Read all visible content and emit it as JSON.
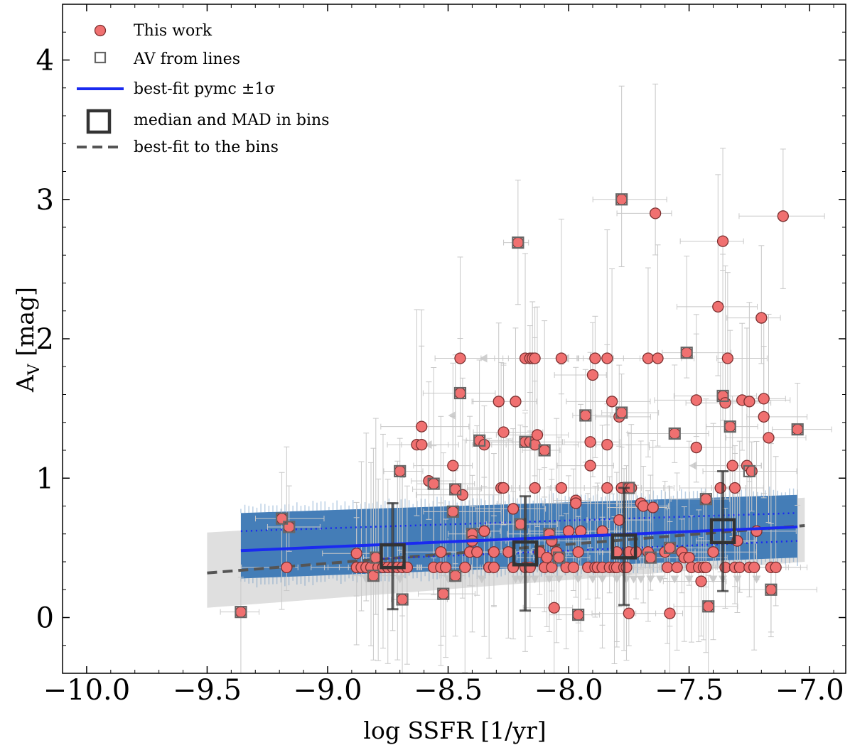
{
  "chart_data": {
    "type": "scatter",
    "xlabel": "log SSFR [1/yr]",
    "ylabel": "A_V [mag]",
    "xlim": [
      -10.1,
      -6.85
    ],
    "ylim": [
      -0.4,
      4.4
    ],
    "xticks": [
      -10.0,
      -9.5,
      -9.0,
      -8.5,
      -8.0,
      -7.5,
      -7.0
    ],
    "xtick_labels": [
      "−10.0",
      "−9.5",
      "−9.0",
      "−8.5",
      "−8.0",
      "−7.5",
      "−7.0"
    ],
    "yticks": [
      0,
      1,
      2,
      3,
      4
    ],
    "ytick_labels": [
      "0",
      "1",
      "2",
      "3",
      "4"
    ],
    "grid": false,
    "legend_position": "top-left",
    "legend": [
      {
        "label": "This work",
        "marker": "circle"
      },
      {
        "label": "AV from lines",
        "marker": "square"
      },
      {
        "label": "best-fit pymc ±1σ",
        "marker": "solid-line"
      },
      {
        "label": "median and MAD in bins",
        "marker": "big-square"
      },
      {
        "label": "best-fit to the bins",
        "marker": "dashed-line"
      }
    ],
    "colors": {
      "points": "#f07070",
      "point_edge": "#7a3030",
      "errorbar": "#c8c8c8",
      "fit_line": "#1a2af0",
      "fit_band": "#3f7ab6",
      "bins": "#333333",
      "bin_band": "#d9d9d9",
      "limit_arrow": "#c8c8c8"
    },
    "series": [
      {
        "name": "This work",
        "points": [
          [
            -9.36,
            0.04
          ],
          [
            -9.19,
            0.71
          ],
          [
            -9.16,
            0.65
          ],
          [
            -9.17,
            0.36
          ],
          [
            -8.88,
            0.46
          ],
          [
            -8.88,
            0.36
          ],
          [
            -8.86,
            0.36
          ],
          [
            -8.84,
            0.36
          ],
          [
            -8.82,
            0.36
          ],
          [
            -8.8,
            0.43
          ],
          [
            -8.81,
            0.3
          ],
          [
            -8.79,
            0.36
          ],
          [
            -8.77,
            0.36
          ],
          [
            -8.75,
            0.36
          ],
          [
            -8.73,
            0.36
          ],
          [
            -8.71,
            0.36
          ],
          [
            -8.69,
            0.36
          ],
          [
            -8.67,
            0.36
          ],
          [
            -8.7,
            1.05
          ],
          [
            -8.69,
            0.13
          ],
          [
            -8.63,
            1.24
          ],
          [
            -8.61,
            1.24
          ],
          [
            -8.61,
            1.37
          ],
          [
            -8.58,
            0.98
          ],
          [
            -8.56,
            0.96
          ],
          [
            -8.56,
            0.36
          ],
          [
            -8.53,
            0.36
          ],
          [
            -8.51,
            0.36
          ],
          [
            -8.53,
            0.47
          ],
          [
            -8.52,
            0.17
          ],
          [
            -8.48,
            1.09
          ],
          [
            -8.47,
            0.92
          ],
          [
            -8.48,
            0.76
          ],
          [
            -8.47,
            0.3
          ],
          [
            -8.45,
            1.86
          ],
          [
            -8.45,
            1.61
          ],
          [
            -8.44,
            0.88
          ],
          [
            -8.43,
            0.36
          ],
          [
            -8.41,
            0.47
          ],
          [
            -8.4,
            0.6
          ],
          [
            -8.4,
            0.55
          ],
          [
            -8.38,
            0.47
          ],
          [
            -8.37,
            1.27
          ],
          [
            -8.35,
            1.24
          ],
          [
            -8.35,
            0.62
          ],
          [
            -8.33,
            0.36
          ],
          [
            -8.31,
            0.36
          ],
          [
            -8.31,
            0.47
          ],
          [
            -8.29,
            1.55
          ],
          [
            -8.28,
            0.93
          ],
          [
            -8.27,
            0.93
          ],
          [
            -8.27,
            1.33
          ],
          [
            -8.25,
            0.47
          ],
          [
            -8.23,
            0.36
          ],
          [
            -8.22,
            1.55
          ],
          [
            -8.23,
            0.78
          ],
          [
            -8.21,
            2.69
          ],
          [
            -8.2,
            0.67
          ],
          [
            -8.18,
            1.86
          ],
          [
            -8.16,
            1.86
          ],
          [
            -8.15,
            1.86
          ],
          [
            -8.14,
            1.86
          ],
          [
            -8.18,
            1.26
          ],
          [
            -8.16,
            1.26
          ],
          [
            -8.14,
            1.24
          ],
          [
            -8.13,
            1.31
          ],
          [
            -8.14,
            0.93
          ],
          [
            -8.18,
            0.36
          ],
          [
            -8.16,
            0.36
          ],
          [
            -8.12,
            0.47
          ],
          [
            -8.1,
            0.36
          ],
          [
            -8.1,
            1.2
          ],
          [
            -8.09,
            0.43
          ],
          [
            -8.08,
            0.6
          ],
          [
            -8.07,
            0.55
          ],
          [
            -8.07,
            0.36
          ],
          [
            -8.06,
            0.07
          ],
          [
            -8.05,
            0.47
          ],
          [
            -8.04,
            0.43
          ],
          [
            -8.03,
            1.86
          ],
          [
            -8.03,
            0.93
          ],
          [
            -8.01,
            0.36
          ],
          [
            -8.0,
            0.62
          ],
          [
            -7.98,
            0.36
          ],
          [
            -7.97,
            0.84
          ],
          [
            -7.97,
            0.82
          ],
          [
            -7.96,
            0.47
          ],
          [
            -7.96,
            0.02
          ],
          [
            -7.95,
            0.62
          ],
          [
            -7.93,
            1.45
          ],
          [
            -7.92,
            0.36
          ],
          [
            -7.91,
            1.26
          ],
          [
            -7.91,
            1.09
          ],
          [
            -7.9,
            1.74
          ],
          [
            -7.89,
            1.86
          ],
          [
            -7.89,
            0.36
          ],
          [
            -7.88,
            0.36
          ],
          [
            -7.86,
            0.36
          ],
          [
            -7.86,
            0.62
          ],
          [
            -7.84,
            1.86
          ],
          [
            -7.84,
            1.24
          ],
          [
            -7.84,
            0.93
          ],
          [
            -7.83,
            0.36
          ],
          [
            -7.82,
            1.55
          ],
          [
            -7.81,
            0.36
          ],
          [
            -7.8,
            0.47
          ],
          [
            -7.8,
            0.36
          ],
          [
            -7.79,
            0.7
          ],
          [
            -7.79,
            1.44
          ],
          [
            -7.78,
            1.47
          ],
          [
            -7.78,
            3.0
          ],
          [
            -7.78,
            0.93
          ],
          [
            -7.77,
            0.36
          ],
          [
            -7.76,
            0.36
          ],
          [
            -7.75,
            0.93
          ],
          [
            -7.75,
            0.47
          ],
          [
            -7.75,
            0.03
          ],
          [
            -7.74,
            0.93
          ],
          [
            -7.72,
            0.47
          ],
          [
            -7.7,
            0.82
          ],
          [
            -7.69,
            0.8
          ],
          [
            -7.67,
            1.86
          ],
          [
            -7.67,
            0.47
          ],
          [
            -7.66,
            0.43
          ],
          [
            -7.65,
            0.79
          ],
          [
            -7.64,
            2.9
          ],
          [
            -7.63,
            1.86
          ],
          [
            -7.6,
            0.47
          ],
          [
            -7.59,
            0.36
          ],
          [
            -7.58,
            0.5
          ],
          [
            -7.58,
            0.03
          ],
          [
            -7.56,
            1.32
          ],
          [
            -7.55,
            0.36
          ],
          [
            -7.53,
            0.47
          ],
          [
            -7.52,
            0.43
          ],
          [
            -7.51,
            1.9
          ],
          [
            -7.5,
            0.43
          ],
          [
            -7.49,
            0.36
          ],
          [
            -7.47,
            1.56
          ],
          [
            -7.47,
            1.22
          ],
          [
            -7.46,
            0.36
          ],
          [
            -7.45,
            0.26
          ],
          [
            -7.44,
            0.36
          ],
          [
            -7.43,
            0.85
          ],
          [
            -7.43,
            0.36
          ],
          [
            -7.42,
            0.08
          ],
          [
            -7.4,
            0.47
          ],
          [
            -7.38,
            2.23
          ],
          [
            -7.37,
            0.93
          ],
          [
            -7.36,
            2.7
          ],
          [
            -7.36,
            1.59
          ],
          [
            -7.35,
            1.54
          ],
          [
            -7.35,
            0.36
          ],
          [
            -7.34,
            1.86
          ],
          [
            -7.33,
            1.37
          ],
          [
            -7.32,
            1.09
          ],
          [
            -7.31,
            0.93
          ],
          [
            -7.31,
            0.36
          ],
          [
            -7.3,
            0.55
          ],
          [
            -7.29,
            0.36
          ],
          [
            -7.28,
            1.56
          ],
          [
            -7.26,
            1.09
          ],
          [
            -7.25,
            1.55
          ],
          [
            -7.25,
            0.36
          ],
          [
            -7.24,
            1.05
          ],
          [
            -7.23,
            0.36
          ],
          [
            -7.22,
            0.62
          ],
          [
            -7.2,
            2.15
          ],
          [
            -7.19,
            1.44
          ],
          [
            -7.19,
            1.57
          ],
          [
            -7.17,
            1.29
          ],
          [
            -7.16,
            0.2
          ],
          [
            -7.16,
            0.36
          ],
          [
            -7.14,
            0.36
          ],
          [
            -7.11,
            2.88
          ],
          [
            -7.05,
            1.35
          ]
        ]
      },
      {
        "name": "AV from lines",
        "points": [
          [
            -9.36,
            0.04
          ],
          [
            -9.19,
            0.71
          ],
          [
            -9.16,
            0.65
          ],
          [
            -8.81,
            0.3
          ],
          [
            -8.8,
            0.43
          ],
          [
            -8.7,
            1.05
          ],
          [
            -8.69,
            0.13
          ],
          [
            -8.56,
            0.96
          ],
          [
            -8.52,
            0.17
          ],
          [
            -8.48,
            0.76
          ],
          [
            -8.47,
            0.92
          ],
          [
            -8.47,
            0.3
          ],
          [
            -8.45,
            1.61
          ],
          [
            -8.4,
            0.6
          ],
          [
            -8.37,
            1.27
          ],
          [
            -8.21,
            2.69
          ],
          [
            -8.2,
            0.67
          ],
          [
            -8.18,
            1.26
          ],
          [
            -8.1,
            1.2
          ],
          [
            -8.08,
            0.6
          ],
          [
            -8.04,
            0.43
          ],
          [
            -7.96,
            0.02
          ],
          [
            -7.93,
            1.45
          ],
          [
            -7.78,
            1.47
          ],
          [
            -7.78,
            3.0
          ],
          [
            -7.75,
            0.93
          ],
          [
            -7.66,
            0.43
          ],
          [
            -7.58,
            0.5
          ],
          [
            -7.56,
            1.32
          ],
          [
            -7.51,
            1.9
          ],
          [
            -7.43,
            0.85
          ],
          [
            -7.42,
            0.08
          ],
          [
            -7.36,
            1.59
          ],
          [
            -7.33,
            1.37
          ],
          [
            -7.25,
            1.05
          ],
          [
            -7.16,
            0.2
          ],
          [
            -7.05,
            1.35
          ]
        ]
      },
      {
        "name": "upper limits",
        "points": [
          [
            -8.84,
            0.27
          ],
          [
            -8.7,
            0.27
          ],
          [
            -8.5,
            0.27
          ],
          [
            -8.36,
            0.27
          ],
          [
            -8.22,
            0.27
          ],
          [
            -8.2,
            0.27
          ],
          [
            -8.17,
            0.27
          ],
          [
            -8.14,
            0.27
          ],
          [
            -8.08,
            0.27
          ],
          [
            -8.04,
            0.27
          ],
          [
            -7.96,
            0.27
          ],
          [
            -7.9,
            0.27
          ],
          [
            -7.86,
            0.27
          ],
          [
            -7.8,
            0.27
          ],
          [
            -7.76,
            0.27
          ],
          [
            -7.73,
            0.27
          ],
          [
            -7.7,
            0.27
          ],
          [
            -7.66,
            0.27
          ],
          [
            -7.62,
            0.27
          ],
          [
            -7.56,
            0.27
          ],
          [
            -7.5,
            0.27
          ],
          [
            -7.4,
            0.27
          ],
          [
            -7.36,
            0.27
          ],
          [
            -7.3,
            0.27
          ],
          [
            -7.22,
            0.27
          ]
        ]
      }
    ],
    "bins": {
      "name": "median and MAD in bins",
      "points": [
        {
          "x": -8.73,
          "y": 0.44,
          "err": 0.38
        },
        {
          "x": -8.18,
          "y": 0.46,
          "err": 0.41
        },
        {
          "x": -7.77,
          "y": 0.51,
          "err": 0.42
        },
        {
          "x": -7.36,
          "y": 0.62,
          "err": 0.43
        }
      ]
    },
    "fit_pymc": {
      "name": "best-fit pymc ±1σ",
      "x_range": [
        -9.36,
        -7.05
      ],
      "y_at_ends": [
        0.48,
        0.65
      ],
      "sigma_lower": [
        0.0,
        0.55
      ],
      "sigma_upper": [
        0.62,
        0.75
      ],
      "band_lower": [
        0.28,
        0.43
      ],
      "band_upper": [
        0.75,
        0.88
      ]
    },
    "fit_bins": {
      "name": "best-fit to the bins",
      "x_range": [
        -9.5,
        -7.02
      ],
      "y_at_ends": [
        0.32,
        0.66
      ],
      "band_lower": [
        0.07,
        0.4
      ],
      "band_upper": [
        0.61,
        0.86
      ]
    }
  }
}
